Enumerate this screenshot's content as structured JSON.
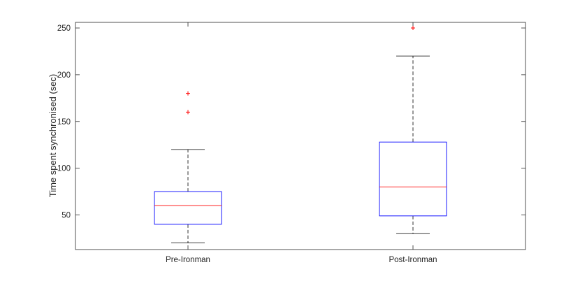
{
  "chart_data": {
    "type": "boxplot",
    "title": "",
    "xlabel": "",
    "ylabel": "Time spent synchronised (sec)",
    "ylim": [
      13,
      256
    ],
    "yticks": [
      50,
      100,
      150,
      200,
      250
    ],
    "grid": false,
    "categories": [
      "Pre-Ironman",
      "Post-Ironman"
    ],
    "boxes": [
      {
        "category": "Pre-Ironman",
        "whisker_low": 20,
        "q1": 40,
        "median": 60,
        "q3": 75,
        "whisker_high": 120,
        "outliers": [
          160,
          180
        ]
      },
      {
        "category": "Post-Ironman",
        "whisker_low": 30,
        "q1": 49,
        "median": 80,
        "q3": 128,
        "whisker_high": 220,
        "outliers": [
          250
        ]
      }
    ],
    "colors": {
      "box": "#0000ff",
      "median": "#ff0000",
      "whisker": "#000000",
      "outlier": "#ff0000",
      "axis": "#262626"
    }
  }
}
